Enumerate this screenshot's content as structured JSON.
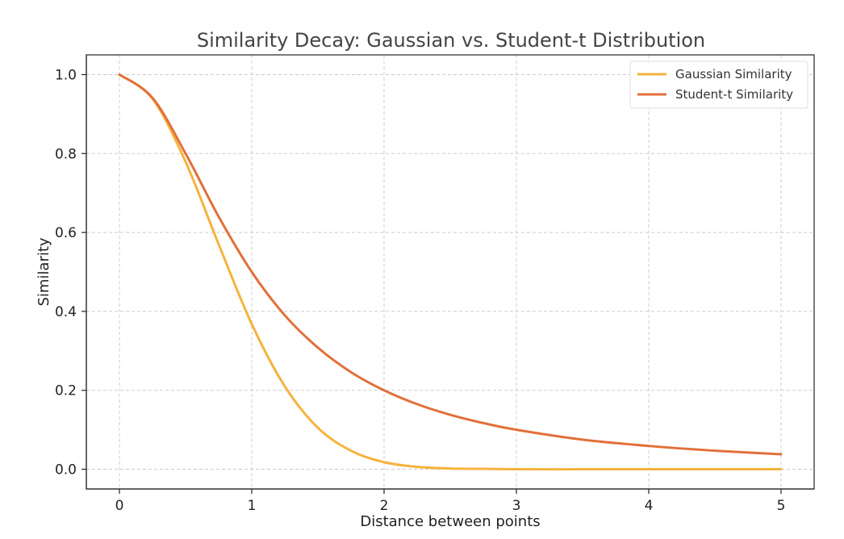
{
  "chart_data": {
    "type": "line",
    "title": "Similarity Decay: Gaussian vs. Student-t Distribution",
    "xlabel": "Distance between points",
    "ylabel": "Similarity",
    "xlim": [
      -0.25,
      5.25
    ],
    "ylim": [
      -0.05,
      1.05
    ],
    "xticks": [
      0,
      1,
      2,
      3,
      4,
      5
    ],
    "xtick_labels": [
      "0",
      "1",
      "2",
      "3",
      "4",
      "5"
    ],
    "yticks": [
      0.0,
      0.2,
      0.4,
      0.6,
      0.8,
      1.0
    ],
    "ytick_labels": [
      "0.0",
      "0.2",
      "0.4",
      "0.6",
      "0.8",
      "1.0"
    ],
    "grid": true,
    "legend_position": "top-right",
    "x": [
      0,
      0.25,
      0.5,
      0.75,
      1.0,
      1.25,
      1.5,
      1.75,
      2.0,
      2.25,
      2.5,
      2.75,
      3.0,
      3.5,
      4.0,
      4.5,
      5.0
    ],
    "series": [
      {
        "name": "Gaussian Similarity",
        "color": "#F5B33D",
        "values": [
          1.0,
          0.939,
          0.779,
          0.57,
          0.368,
          0.21,
          0.105,
          0.047,
          0.018,
          0.006,
          0.002,
          0.001,
          0.0,
          0.0,
          0.0,
          0.0,
          0.0
        ]
      },
      {
        "name": "Student-t Similarity",
        "color": "#E2703A",
        "values": [
          1.0,
          0.941,
          0.8,
          0.64,
          0.5,
          0.39,
          0.308,
          0.246,
          0.2,
          0.165,
          0.138,
          0.117,
          0.1,
          0.075,
          0.059,
          0.047,
          0.038
        ]
      }
    ]
  }
}
